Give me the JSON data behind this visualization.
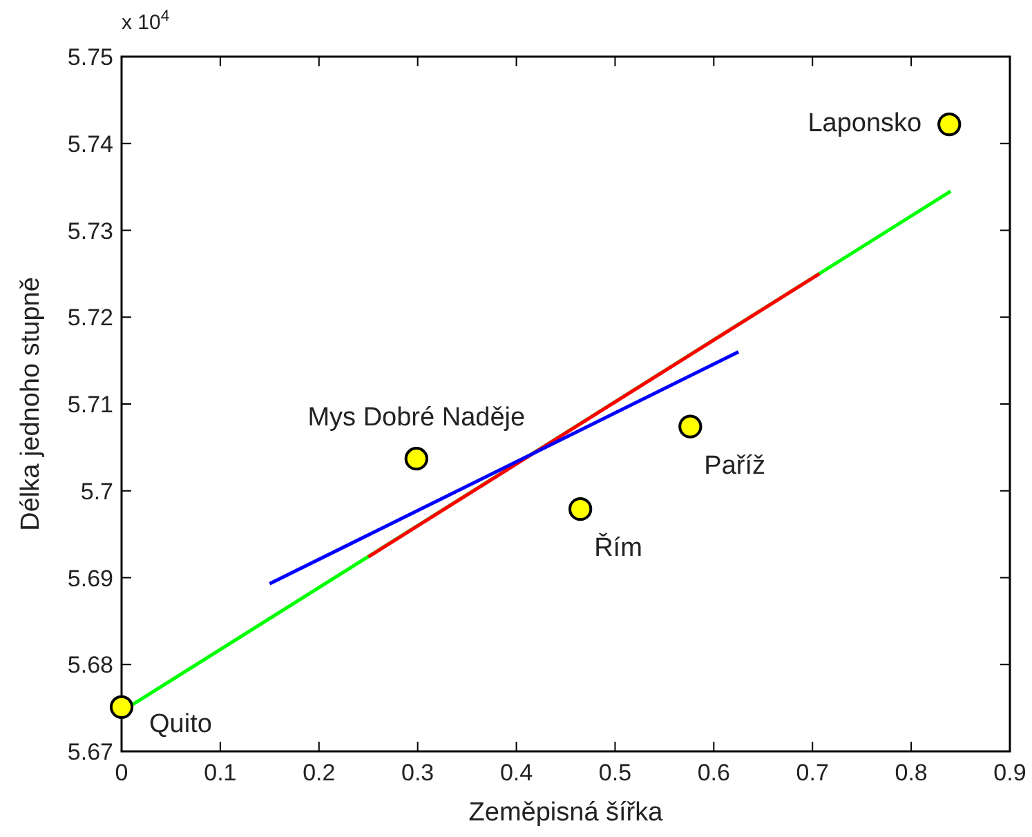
{
  "chart_data": {
    "type": "scatter",
    "xlabel": "Zeměpisná šířka",
    "ylabel": "Délka jednoho stupně",
    "xlim": [
      0,
      0.9
    ],
    "ylim": [
      5.67,
      5.75
    ],
    "xticks": [
      0,
      0.1,
      0.2,
      0.3,
      0.4,
      0.5,
      0.6,
      0.7,
      0.8,
      0.9
    ],
    "yticks": [
      5.67,
      5.68,
      5.69,
      {
        "value": 5.7,
        "label": "5.7"
      },
      5.71,
      5.72,
      5.73,
      5.74,
      5.75
    ],
    "grid": false,
    "series": [
      {
        "type": "line",
        "color": "#00ff00",
        "x": [
          0,
          0.84
        ],
        "values": [
          5.6746,
          5.7345
        ]
      },
      {
        "type": "line",
        "color": "#ff0000",
        "x": [
          0.25,
          0.707
        ],
        "values": [
          5.6924,
          5.725
        ]
      },
      {
        "type": "line",
        "color": "#0000ff",
        "x": [
          0.15,
          0.625
        ],
        "values": [
          5.6893,
          5.716
        ]
      },
      {
        "color": "#ffff00",
        "x": [
          0,
          0.2987,
          0.4648,
          0.5762,
          0.8386
        ],
        "values": [
          5.6751,
          5.7037,
          5.6979,
          5.7074,
          5.7422
        ],
        "marker": "circle"
      }
    ],
    "annotations": [
      "x 10$^{4}$",
      {
        "text": "Quito",
        "x": 0,
        "y": 5.6751
      },
      {
        "text": "Mys Dobré Naděje",
        "x": 0.2987,
        "y": 5.7037
      },
      {
        "text": "Řím",
        "x": 0.4648,
        "y": 5.6979
      },
      {
        "text": "Paříž",
        "x": 0.5762,
        "y": 5.7074
      },
      {
        "text": "Laponsko",
        "x": 0.8386,
        "y": 5.7422
      }
    ]
  }
}
